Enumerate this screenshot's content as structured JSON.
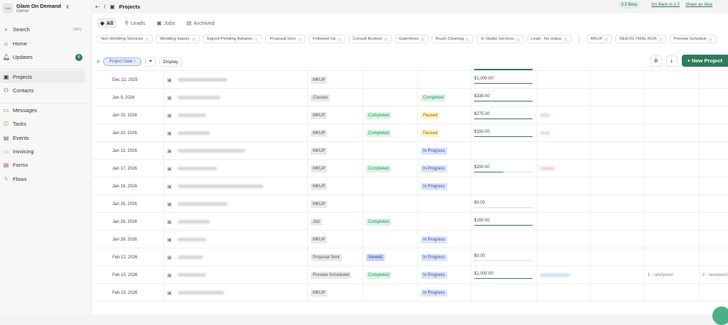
{
  "sidebar": {
    "org_name": "Glam On Demand",
    "org_role": "Owner",
    "search": "Search",
    "search_kbd": "[⌘K]",
    "updates_badge": "6",
    "items": [
      {
        "label": "Search",
        "icon": "search-icon"
      },
      {
        "label": "Home",
        "icon": "home-icon"
      },
      {
        "label": "Updates",
        "icon": "bell-icon"
      },
      {
        "label": "Projects",
        "icon": "folder-icon"
      },
      {
        "label": "Contacts",
        "icon": "users-icon"
      },
      {
        "label": "Messages",
        "icon": "message-icon"
      },
      {
        "label": "Tasks",
        "icon": "task-icon"
      },
      {
        "label": "Events",
        "icon": "calendar-icon"
      },
      {
        "label": "Invoicing",
        "icon": "invoice-icon"
      },
      {
        "label": "Forms",
        "icon": "form-icon"
      },
      {
        "label": "Flows",
        "icon": "flow-icon"
      }
    ]
  },
  "topbar": {
    "breadcrumb": "Projects",
    "beta": "3.0 Beta",
    "go_back": "Go Back to 2.0",
    "share": "Share an Idea"
  },
  "tabs": [
    "All",
    "Leads",
    "Jobs",
    "Archived"
  ],
  "chips": [
    "Non Wedding Services",
    "Wedding Inquiry",
    "Signed-Pending Retainer",
    "Proposal Sent",
    "Followed Up",
    "Consult Booked",
    "Galentines",
    "Brush Cleaning",
    "In Studio Services",
    "Lead - No status"
  ],
  "chips2": [
    "MKUP",
    "NEEOS TRIAL RUN",
    "Preview Schedule"
  ],
  "toolbar": {
    "sort": "Project Date ↑",
    "display": "Display",
    "new_project": "+ New Project"
  },
  "colors": {
    "accent": "#2f7a5c",
    "completed": "#d9f5e5",
    "paused": "#fdf3c4",
    "in_progress": "#dbe4fb"
  },
  "rows": [
    {
      "date": "Dec 22, 2025",
      "type": "MKUP",
      "s1": "",
      "s2": "",
      "amount": "$1,000.00",
      "paid": 1
    },
    {
      "date": "Jan 9, 2026",
      "type": "Classes",
      "s1": "",
      "s2": "Completed",
      "amount": "$330.00",
      "paid": 1
    },
    {
      "date": "Jan 10, 2026",
      "type": "MKUP",
      "s1": "Completed",
      "s2": "Paused",
      "amount": "$275.00",
      "paid": 1,
      "extra": "green"
    },
    {
      "date": "Jan 10, 2026",
      "type": "MKUP",
      "s1": "Completed",
      "s2": "Paused",
      "amount": "$150.00",
      "paid": 1,
      "extra": "green"
    },
    {
      "date": "Jan 13, 2026",
      "type": "MKUP",
      "s1": "",
      "s2": "In Progress",
      "amount": ""
    },
    {
      "date": "Jan 17, 2026",
      "type": "MKUP",
      "s1": "Completed",
      "s2": "In Progress",
      "amount": "$200.00",
      "paid": 0.5,
      "extra": "pink"
    },
    {
      "date": "Jan 19, 2026",
      "type": "MKUP",
      "s1": "",
      "s2": "In Progress",
      "amount": ""
    },
    {
      "date": "Jan 26, 2026",
      "type": "MKUP",
      "s1": "",
      "s2": "",
      "amount": "$0.00",
      "paid": 0
    },
    {
      "date": "Jan 29, 2026",
      "type": "Job",
      "s1": "Completed",
      "s2": "",
      "amount": "$150.00",
      "paid": 1
    },
    {
      "date": "Jan 29, 2026",
      "type": "MKUP",
      "s1": "",
      "s2": "In Progress",
      "amount": ""
    },
    {
      "date": "Feb 12, 2026",
      "type": "Proposal Sent",
      "s1": "Viewed",
      "s2": "In Progress",
      "amount": "$0.00",
      "paid": 0
    },
    {
      "date": "Feb 15, 2026",
      "type": "Preview Scheduled",
      "s1": "Completed",
      "s2": "In Progress",
      "amount": "$1,000.00",
      "paid": 1,
      "extra": "blue",
      "c8": "1 - newlywed",
      "c9": "2 - newlywed"
    },
    {
      "date": "Feb 23, 2026",
      "type": "MKUP",
      "s1": "",
      "s2": "In Progress",
      "amount": ""
    }
  ]
}
